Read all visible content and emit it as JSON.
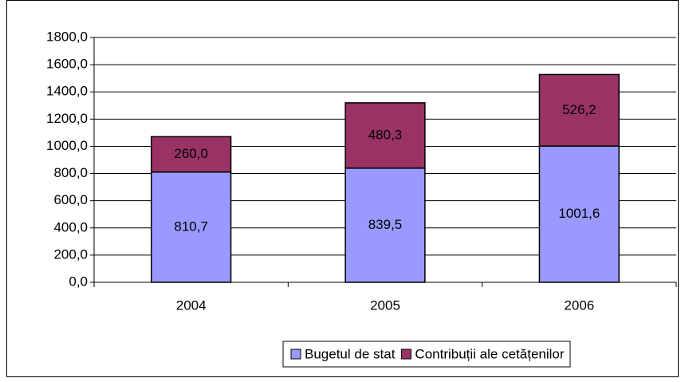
{
  "chart_data": {
    "type": "stacked_bar",
    "categories": [
      "2004",
      "2005",
      "2006"
    ],
    "series": [
      {
        "name": "Bugetul de stat",
        "color": "#9999ff",
        "values": [
          810.7,
          839.5,
          1001.6
        ],
        "value_labels": [
          "810,7",
          "839,5",
          "1001,6"
        ]
      },
      {
        "name": "Contribuții ale cetățenilor",
        "color": "#993366",
        "values": [
          260.0,
          480.3,
          526.2
        ],
        "value_labels": [
          "260,0",
          "480,3",
          "526,2"
        ]
      }
    ],
    "ylim": [
      0,
      1800
    ],
    "yticks": [
      {
        "value": 0,
        "label": "0,0"
      },
      {
        "value": 200,
        "label": "200,0"
      },
      {
        "value": 400,
        "label": "400,0"
      },
      {
        "value": 600,
        "label": "600,0"
      },
      {
        "value": 800,
        "label": "800,0"
      },
      {
        "value": 1000,
        "label": "1000,0"
      },
      {
        "value": 1200,
        "label": "1200,0"
      },
      {
        "value": 1400,
        "label": "1400,0"
      },
      {
        "value": 1600,
        "label": "1600,0"
      },
      {
        "value": 1800,
        "label": "1800,0"
      }
    ],
    "grid": true,
    "legend": "bottom"
  }
}
